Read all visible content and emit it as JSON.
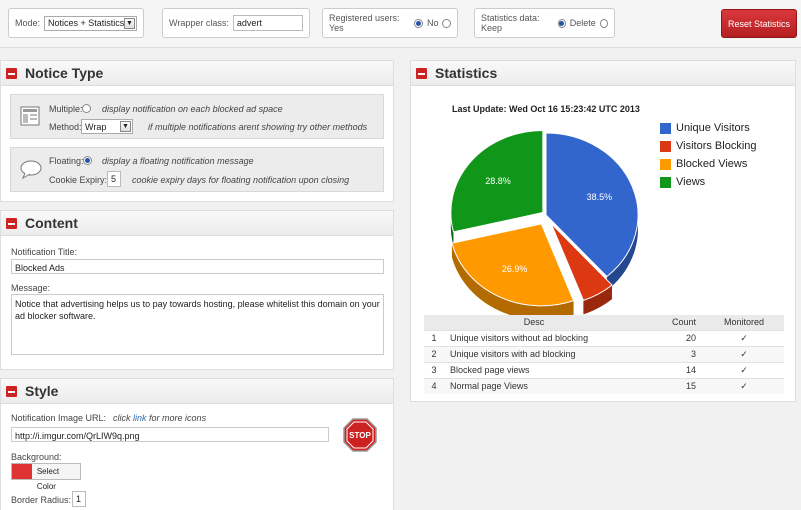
{
  "topbar": {
    "mode_label": "Mode:",
    "mode_value": "Notices + Statistics",
    "wrapper_label": "Wrapper class:",
    "wrapper_value": "advert",
    "registered_label": "Registered users: Yes",
    "registered_no": "No",
    "stats_label": "Statistics data: Keep",
    "stats_delete": "Delete",
    "reset_label": "Reset Statistics"
  },
  "notice": {
    "title": "Notice Type",
    "multiple_label": "Multiple:",
    "multiple_desc": "display notification on each blocked ad space",
    "method_label": "Method:",
    "method_value": "Wrap",
    "method_desc": "if multiple notifications arent showing try other methods",
    "floating_label": "Floating:",
    "floating_desc": "display a floating notification message",
    "cookie_label": "Cookie Expiry:",
    "cookie_value": "5",
    "cookie_desc": "cookie expiry days for floating notification upon closing"
  },
  "content": {
    "title": "Content",
    "notif_title_label": "Notification Title:",
    "notif_title_value": "Blocked Ads",
    "message_label": "Message:",
    "message_value": "Notice that advertising helps us to pay towards hosting, please whitelist this domain on your ad blocker software."
  },
  "style": {
    "title": "Style",
    "image_url_label": "Notification Image URL:",
    "image_hint_pre": "click",
    "image_hint_link": "link",
    "image_hint_post": "for more icons",
    "image_url_value": "http://i.imgur.com/QrLIW9q.png",
    "stop_text": "STOP",
    "background_label": "Background:",
    "background_color": "#dd3333",
    "select_color_label": "Select Color",
    "border_radius_label": "Border Radius:",
    "border_radius_value": "1"
  },
  "statistics": {
    "title": "Statistics",
    "table_headers": [
      "",
      "Desc",
      "Count",
      "Monitored"
    ],
    "rows": [
      {
        "num": "1",
        "desc": "Unique visitors without ad blocking",
        "count": "20",
        "monitored": "✓"
      },
      {
        "num": "2",
        "desc": "Unique visitors with ad blocking",
        "count": "3",
        "monitored": "✓"
      },
      {
        "num": "3",
        "desc": "Blocked page views",
        "count": "14",
        "monitored": "✓"
      },
      {
        "num": "4",
        "desc": "Normal page Views",
        "count": "15",
        "monitored": "✓"
      }
    ]
  },
  "chart_data": {
    "type": "pie",
    "title": "Last Update: Wed Oct 16 15:23:42 UTC 2013",
    "categories": [
      "Unique Visitors",
      "Visitors Blocking",
      "Blocked Views",
      "Views"
    ],
    "values": [
      38.5,
      5.8,
      26.9,
      28.8
    ],
    "labels": [
      "38.5%",
      "",
      "26.9%",
      "28.8%"
    ],
    "colors": [
      "#3366cc",
      "#dc3912",
      "#ff9900",
      "#109618"
    ],
    "legend_position": "right"
  }
}
